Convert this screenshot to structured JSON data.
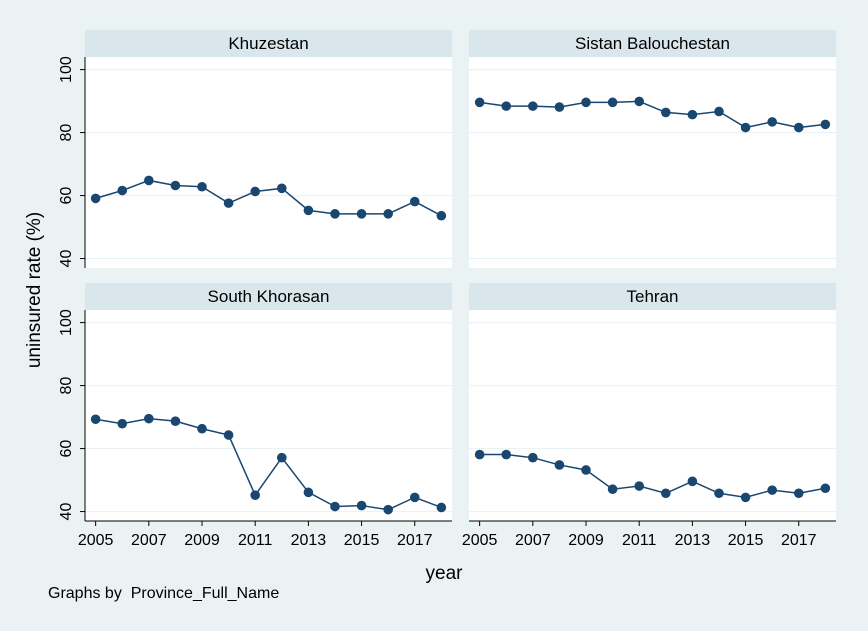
{
  "chart_data": {
    "type": "line",
    "ylabel": "uninsured rate (%)",
    "xlabel": "year",
    "note": "Graphs by  Province_Full_Name",
    "x": [
      2005,
      2006,
      2007,
      2008,
      2009,
      2010,
      2011,
      2012,
      2013,
      2014,
      2015,
      2016,
      2017,
      2018
    ],
    "xticks": [
      2005,
      2007,
      2009,
      2011,
      2013,
      2015,
      2017
    ],
    "yticks": [
      40,
      60,
      80,
      100
    ],
    "ylim": [
      37,
      104
    ],
    "xlim": [
      2004.6,
      2018.4
    ],
    "grid": true,
    "line_color": "#1a476f",
    "panels": [
      {
        "title": "Khuzestan",
        "values": [
          59.1,
          61.6,
          64.8,
          63.2,
          62.8,
          57.6,
          61.3,
          62.3,
          55.3,
          54.2,
          54.2,
          54.2,
          58.1,
          53.6
        ]
      },
      {
        "title": "Sistan Balouchestan",
        "values": [
          89.6,
          88.4,
          88.4,
          88.1,
          89.6,
          89.6,
          89.9,
          86.4,
          85.7,
          86.7,
          81.6,
          83.4,
          81.6,
          82.6
        ]
      },
      {
        "title": "South Khorasan",
        "values": [
          69.3,
          67.9,
          69.5,
          68.7,
          66.3,
          64.3,
          45.2,
          57.1,
          46.1,
          41.6,
          41.9,
          40.6,
          44.5,
          41.3
        ]
      },
      {
        "title": "Tehran",
        "values": [
          58.1,
          58.1,
          57.1,
          54.8,
          53.2,
          47.1,
          48.1,
          45.8,
          49.6,
          45.8,
          44.5,
          46.8,
          45.8,
          47.4
        ]
      }
    ]
  }
}
